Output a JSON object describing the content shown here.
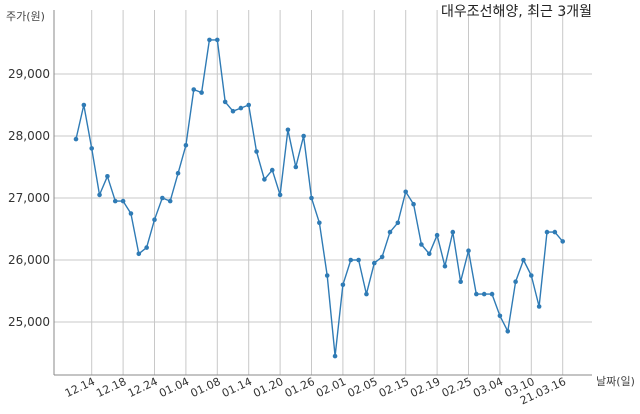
{
  "chart_data": {
    "type": "line",
    "title": "대우조선해양, 최근 3개월",
    "ylabel": "주가(원)",
    "xlabel": "날짜(일)",
    "ylim": [
      24200,
      30000
    ],
    "yticks": [
      25000,
      26000,
      27000,
      28000,
      29000
    ],
    "ytick_labels": [
      "25,000",
      "26,000",
      "27,000",
      "28,000",
      "29,000"
    ],
    "xticks": [
      {
        "index": 2,
        "label": "12.14"
      },
      {
        "index": 6,
        "label": "12.18"
      },
      {
        "index": 10,
        "label": "12.24"
      },
      {
        "index": 14,
        "label": "01.04"
      },
      {
        "index": 18,
        "label": "01.08"
      },
      {
        "index": 22,
        "label": "01.14"
      },
      {
        "index": 26,
        "label": "01.20"
      },
      {
        "index": 30,
        "label": "01.26"
      },
      {
        "index": 34,
        "label": "02.01"
      },
      {
        "index": 38,
        "label": "02.05"
      },
      {
        "index": 42,
        "label": "02.15"
      },
      {
        "index": 46,
        "label": "02.19"
      },
      {
        "index": 50,
        "label": "02.25"
      },
      {
        "index": 54,
        "label": "03.04"
      },
      {
        "index": 58,
        "label": "03.10"
      },
      {
        "index": 62,
        "label": "21.03.16"
      }
    ],
    "grid": true,
    "color": "#2f7bb5",
    "values": [
      27950,
      28500,
      27800,
      27050,
      27350,
      26950,
      26950,
      26750,
      26100,
      26200,
      26650,
      27000,
      26950,
      27400,
      27850,
      28750,
      28700,
      29550,
      29550,
      28550,
      28400,
      28450,
      28500,
      27750,
      27300,
      27450,
      27050,
      28100,
      27500,
      28000,
      27000,
      26600,
      25750,
      24450,
      25600,
      26000,
      26000,
      25450,
      25950,
      26050,
      26450,
      26600,
      27100,
      26900,
      26250,
      26100,
      26400,
      25900,
      26450,
      25650,
      26150,
      25450,
      25450,
      25450,
      25100,
      24850,
      25650,
      26000,
      25750,
      25250,
      26450,
      26450,
      26300
    ]
  }
}
